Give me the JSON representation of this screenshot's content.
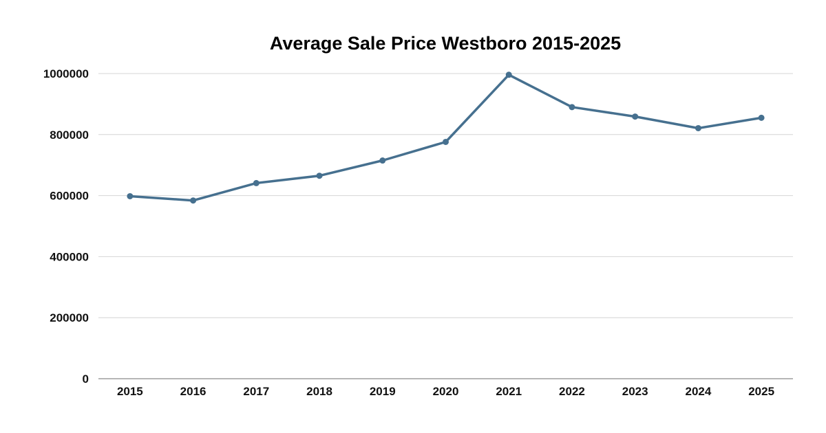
{
  "chart_data": {
    "type": "line",
    "title": "Average Sale Price Westboro 2015-2025",
    "xlabel": "",
    "ylabel": "",
    "categories": [
      "2015",
      "2016",
      "2017",
      "2018",
      "2019",
      "2020",
      "2021",
      "2022",
      "2023",
      "2024",
      "2025"
    ],
    "series": [
      {
        "values": [
          598000,
          584000,
          641000,
          665000,
          715000,
          776000,
          996000,
          890000,
          859000,
          821000,
          855000
        ],
        "color": "#46708f"
      }
    ],
    "ylim": [
      0,
      1000000
    ],
    "yticks": [
      "0",
      "200000",
      "400000",
      "600000",
      "800000",
      "1000000"
    ],
    "grid": true,
    "legend": "none"
  }
}
